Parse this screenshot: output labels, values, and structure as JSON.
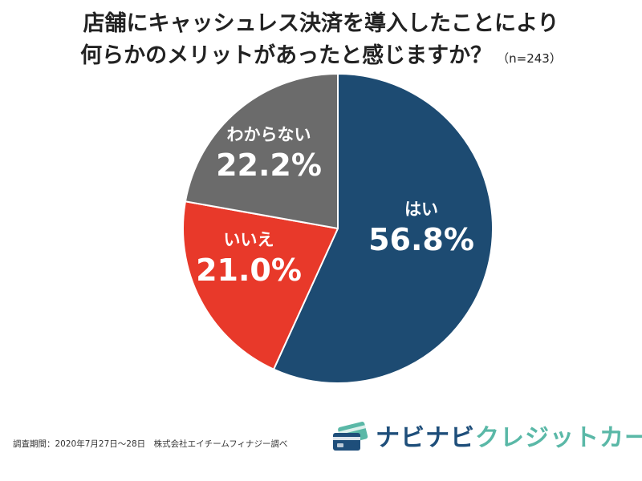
{
  "title": {
    "line1": "店舗にキャッシュレス決済を導入したことにより",
    "line2": "何らかのメリットがあったと感じますか？",
    "sample": "（n=243）"
  },
  "chart_data": {
    "type": "pie",
    "slices": [
      {
        "label": "はい",
        "value": 56.8,
        "display": "56.8%",
        "color": "#1d4b72"
      },
      {
        "label": "いいえ",
        "value": 21.0,
        "display": "21.0%",
        "color": "#e8392a"
      },
      {
        "label": "わからない",
        "value": 22.2,
        "display": "22.2%",
        "color": "#6b6b6b"
      }
    ],
    "start": "top",
    "direction": "clockwise"
  },
  "footnote": "調査期間：2020年7月27日〜28日　株式会社エイチームフィナジー調べ",
  "brand": {
    "part1": "ナビナビ",
    "part2": "クレジットカード",
    "logo_icon": "credit-cards-icon",
    "colors": {
      "primary": "#1e4e7a",
      "accent": "#5ab8a7"
    }
  }
}
